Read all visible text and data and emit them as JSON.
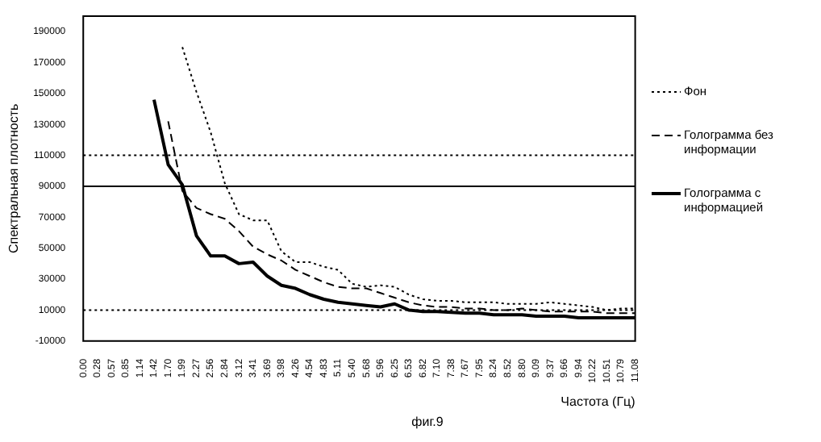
{
  "chart_data": {
    "type": "line",
    "xlabel": "Частота (Гц)",
    "ylabel": "Спектральная плотность",
    "annotations": [
      "фиг.9"
    ],
    "categories": [
      "0.00",
      "0.28",
      "0.57",
      "0.85",
      "1.14",
      "1.42",
      "1.70",
      "1.99",
      "2.27",
      "2.56",
      "2.84",
      "3.12",
      "3.41",
      "3.69",
      "3.98",
      "4.26",
      "4.54",
      "4.83",
      "5.11",
      "5.40",
      "5.68",
      "5.96",
      "6.25",
      "6.53",
      "6.82",
      "7.10",
      "7.38",
      "7.67",
      "7.95",
      "8.24",
      "8.52",
      "8.80",
      "9.09",
      "9.37",
      "9.66",
      "9.94",
      "10.22",
      "10.51",
      "10.79",
      "11.08"
    ],
    "ylim": [
      -10000,
      200000
    ],
    "yticks": [
      -10000,
      10000,
      30000,
      50000,
      70000,
      90000,
      110000,
      130000,
      150000,
      170000,
      190000
    ],
    "grid": false,
    "legend": "right",
    "marker": "none",
    "ref_lines": [
      {
        "axis": "y",
        "value": 110000,
        "line_style": "dotted",
        "color": "#000000"
      },
      {
        "axis": "y",
        "value": 90000,
        "line_style": "solid",
        "color": "#000000"
      },
      {
        "axis": "y",
        "value": 10000,
        "line_style": "dotted",
        "color": "#000000"
      }
    ],
    "series": [
      {
        "name": "Фон",
        "color": "#000000",
        "line_style": "dotted",
        "values": [
          null,
          null,
          null,
          null,
          null,
          null,
          null,
          180000,
          151000,
          125000,
          92000,
          72000,
          68000,
          68000,
          48000,
          41000,
          41000,
          38000,
          36000,
          27000,
          25000,
          26000,
          25000,
          20000,
          17000,
          16000,
          16000,
          15000,
          15000,
          15000,
          14000,
          14000,
          14000,
          15000,
          14000,
          13000,
          12000,
          10000,
          11000,
          11000
        ]
      },
      {
        "name": "Голограмма без информации",
        "color": "#000000",
        "line_style": "dashed",
        "values": [
          null,
          null,
          null,
          null,
          null,
          null,
          132000,
          87000,
          76000,
          72000,
          69000,
          61000,
          51000,
          46000,
          42000,
          36000,
          32000,
          28000,
          25000,
          24000,
          24000,
          21000,
          18000,
          15000,
          13000,
          12000,
          12000,
          11000,
          11000,
          10000,
          10000,
          11000,
          10000,
          9000,
          9000,
          9000,
          9000,
          8000,
          8000,
          8000
        ]
      },
      {
        "name": "Голограмма с информацией",
        "color": "#000000",
        "line_style": "solid",
        "values": [
          null,
          null,
          null,
          null,
          null,
          146000,
          104000,
          91000,
          58000,
          45000,
          45000,
          40000,
          41000,
          32000,
          26000,
          24000,
          20000,
          17000,
          15000,
          14000,
          13000,
          12000,
          14000,
          10000,
          9000,
          9000,
          8500,
          8000,
          8000,
          7000,
          7000,
          7000,
          6000,
          6000,
          6000,
          5000,
          5000,
          5000,
          5000,
          5000
        ]
      }
    ]
  }
}
